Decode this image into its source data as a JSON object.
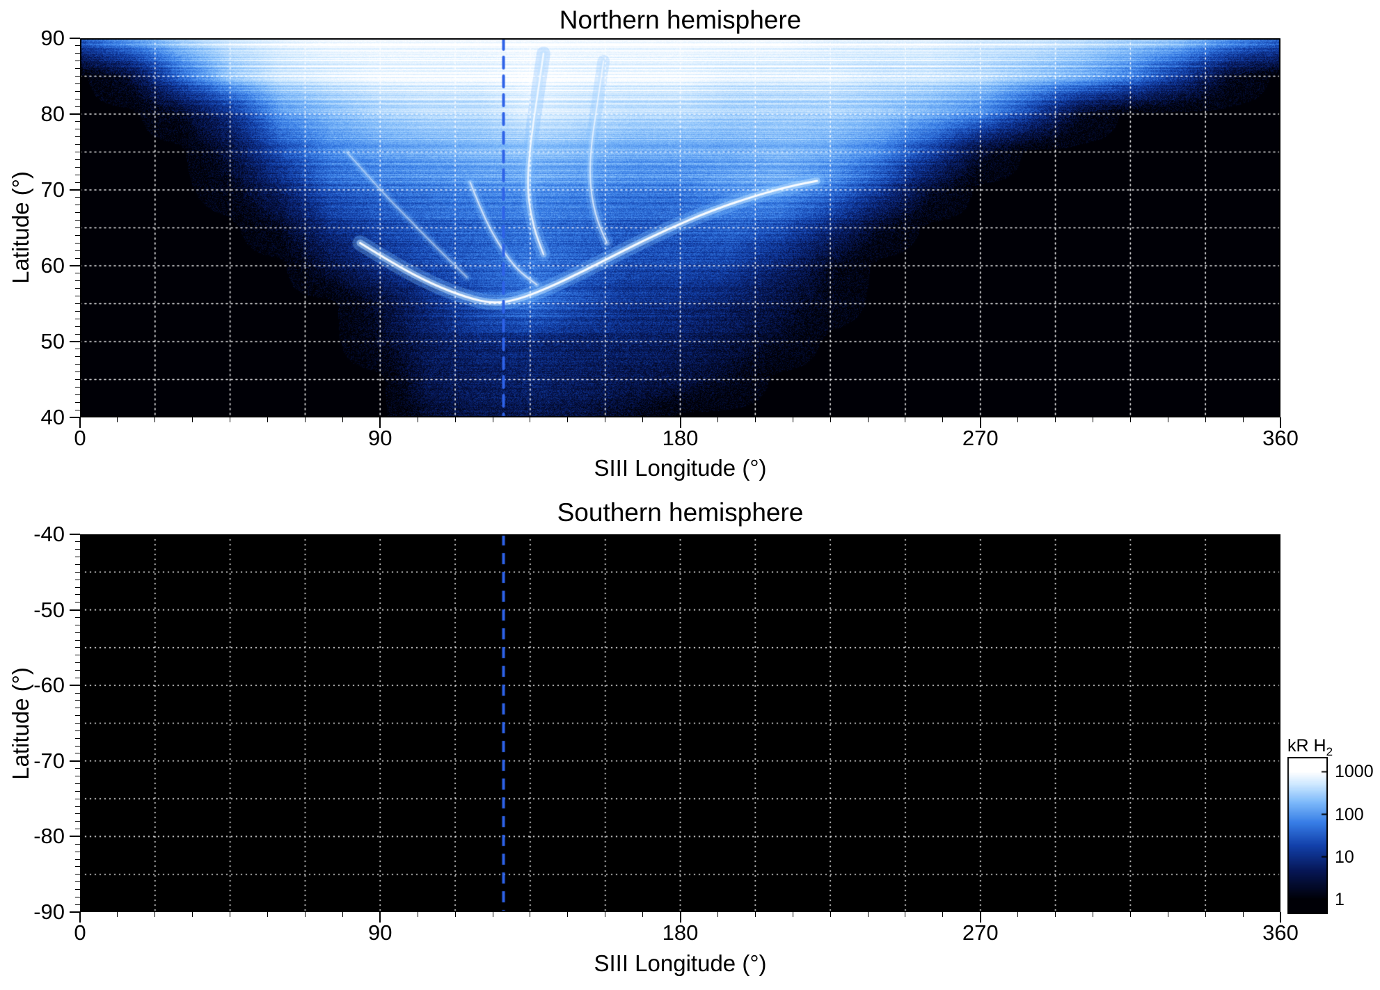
{
  "chart_data": [
    {
      "id": "northern",
      "type": "heatmap",
      "title": "Northern hemisphere",
      "xlabel": "SIII Longitude (°)",
      "ylabel": "Latitude (°)",
      "xlim": [
        0,
        360
      ],
      "ylim": [
        40,
        90
      ],
      "xticks": [
        0,
        90,
        180,
        270,
        360
      ],
      "yticks": [
        40,
        50,
        60,
        70,
        80,
        90
      ],
      "grid_x_step": 22.5,
      "grid_y_step": 5,
      "gridline_color": "#ffffff",
      "reference_line": {
        "x": 127,
        "color": "#2e62e8",
        "style": "dashed"
      },
      "grid": {
        "units": "log10(kR H2)",
        "lon": [
          0,
          15,
          30,
          45,
          60,
          75,
          90,
          105,
          120,
          135,
          150,
          165,
          180,
          195,
          210,
          225,
          240,
          255,
          270,
          285,
          300,
          315,
          330,
          345,
          360
        ],
        "lat": [
          90,
          85,
          80,
          75,
          70,
          65,
          60,
          55,
          50,
          45,
          40
        ],
        "log10_kr": [
          [
            1.6,
            2.2,
            2.6,
            2.8,
            2.9,
            3.0,
            3.0,
            3.0,
            3.0,
            3.0,
            3.0,
            3.0,
            3.0,
            3.0,
            3.0,
            2.9,
            2.9,
            2.9,
            2.8,
            2.8,
            2.7,
            2.6,
            2.5,
            2.1,
            1.7
          ],
          [
            0,
            0.4,
            1.6,
            2.4,
            2.7,
            2.8,
            2.9,
            2.9,
            2.9,
            3.0,
            2.9,
            2.9,
            2.9,
            2.8,
            2.8,
            2.8,
            2.7,
            2.7,
            2.6,
            2.4,
            2.2,
            1.8,
            1.1,
            0.3,
            0
          ],
          [
            0,
            0,
            0.3,
            1.0,
            2.0,
            2.3,
            2.5,
            2.6,
            2.6,
            2.8,
            2.7,
            2.6,
            2.6,
            2.5,
            2.5,
            2.5,
            2.4,
            2.2,
            1.9,
            1.2,
            0.3,
            0,
            0,
            0,
            0
          ],
          [
            0,
            0,
            0,
            0.5,
            1.4,
            1.9,
            2.1,
            2.2,
            2.3,
            2.4,
            2.3,
            2.2,
            2.2,
            2.2,
            2.3,
            2.2,
            1.9,
            1.3,
            0.4,
            0,
            0,
            0,
            0,
            0,
            0
          ],
          [
            0,
            0,
            0,
            0.2,
            0.8,
            1.5,
            1.7,
            1.8,
            1.9,
            2.0,
            1.9,
            1.8,
            1.8,
            2.0,
            2.1,
            1.8,
            1.2,
            0.4,
            0,
            0,
            0,
            0,
            0,
            0,
            0
          ],
          [
            0,
            0,
            0,
            0,
            0.3,
            1.0,
            1.3,
            1.5,
            1.6,
            1.7,
            1.6,
            1.5,
            1.5,
            1.6,
            1.4,
            0.9,
            0.3,
            0,
            0,
            0,
            0,
            0,
            0,
            0,
            0
          ],
          [
            0,
            0,
            0,
            0,
            0,
            0.5,
            1.0,
            1.3,
            1.5,
            1.7,
            1.5,
            1.3,
            1.3,
            1.2,
            0.8,
            0.3,
            0,
            0,
            0,
            0,
            0,
            0,
            0,
            0,
            0
          ],
          [
            0,
            0,
            0,
            0,
            0,
            0,
            0.4,
            1.0,
            1.5,
            1.8,
            1.4,
            1.1,
            1.0,
            0.8,
            0.5,
            0.2,
            0,
            0,
            0,
            0,
            0,
            0,
            0,
            0,
            0
          ],
          [
            0,
            0,
            0,
            0,
            0,
            0,
            0.3,
            0.7,
            0.9,
            0.9,
            0.8,
            0.8,
            0.7,
            0.5,
            0.3,
            0,
            0,
            0,
            0,
            0,
            0,
            0,
            0,
            0,
            0
          ],
          [
            0,
            0,
            0,
            0,
            0,
            0,
            0,
            0.6,
            0.7,
            0.8,
            0.7,
            0.6,
            0.5,
            0.3,
            0,
            0,
            0,
            0,
            0,
            0,
            0,
            0,
            0,
            0,
            0
          ],
          [
            0,
            0,
            0,
            0,
            0,
            0,
            0,
            0.4,
            0.6,
            0.6,
            0.5,
            0.3,
            0,
            0,
            0,
            0,
            0,
            0,
            0,
            0,
            0,
            0,
            0,
            0,
            0
          ]
        ]
      },
      "arcs": [
        {
          "name": "main-oval-arc",
          "points": [
            [
              84,
              63
            ],
            [
              95,
              60
            ],
            [
              106,
              57.5
            ],
            [
              116,
              55.8
            ],
            [
              124,
              55
            ],
            [
              131,
              55.5
            ],
            [
              140,
              57
            ],
            [
              151,
              59.3
            ],
            [
              163,
              62
            ],
            [
              176,
              64.8
            ],
            [
              190,
              67.4
            ],
            [
              203,
              69.3
            ],
            [
              213,
              70.5
            ],
            [
              221,
              71.2
            ]
          ],
          "core_width": 3,
          "glow_width": 10,
          "brightness": 1.0
        },
        {
          "name": "inner-arc",
          "points": [
            [
              117,
              71
            ],
            [
              121,
              66.5
            ],
            [
              126,
              62.5
            ],
            [
              131,
              59.5
            ],
            [
              137,
              57.5
            ]
          ],
          "core_width": 2,
          "glow_width": 7,
          "brightness": 0.7
        },
        {
          "name": "central-ray-1",
          "points": [
            [
              139,
              88
            ],
            [
              137,
              82
            ],
            [
              135,
              76
            ],
            [
              134,
              70
            ],
            [
              136,
              65
            ],
            [
              139,
              61.5
            ]
          ],
          "core_width": 2.5,
          "glow_width": 9,
          "brightness": 0.85
        },
        {
          "name": "central-ray-2",
          "points": [
            [
              157,
              87
            ],
            [
              155,
              81
            ],
            [
              153,
              75
            ],
            [
              153,
              70
            ],
            [
              155,
              66
            ],
            [
              158,
              63
            ]
          ],
          "core_width": 2,
          "glow_width": 8,
          "brightness": 0.7
        },
        {
          "name": "left-ray",
          "points": [
            [
              80,
              75
            ],
            [
              90,
              70
            ],
            [
              100,
              65.5
            ],
            [
              109,
              61.5
            ],
            [
              116,
              58.5
            ]
          ],
          "core_width": 1.5,
          "glow_width": 6,
          "brightness": 0.5
        }
      ]
    },
    {
      "id": "southern",
      "type": "heatmap",
      "title": "Southern hemisphere",
      "xlabel": "SIII Longitude (°)",
      "ylabel": "Latitude (°)",
      "xlim": [
        0,
        360
      ],
      "ylim": [
        -90,
        -40
      ],
      "xticks": [
        0,
        90,
        180,
        270,
        360
      ],
      "yticks": [
        -90,
        -80,
        -70,
        -60,
        -50,
        -40
      ],
      "grid_x_step": 22.5,
      "grid_y_step": 5,
      "gridline_color": "#ffffff",
      "reference_line": {
        "x": 127,
        "color": "#2e62e8",
        "style": "dashed"
      },
      "empty": true
    }
  ],
  "colorbar": {
    "label_main": "kR H",
    "label_sub": "2",
    "scale": "log",
    "range_kr": [
      1,
      1000
    ],
    "tick_values": [
      1000,
      100,
      10,
      1
    ],
    "tick_labels": [
      "1000",
      "100",
      "10",
      "1"
    ],
    "colormap_stops": [
      {
        "t": 0.0,
        "hex": "#000006"
      },
      {
        "t": 0.22,
        "hex": "#061655"
      },
      {
        "t": 0.42,
        "hex": "#1240aa"
      },
      {
        "t": 0.6,
        "hex": "#377de6"
      },
      {
        "t": 0.76,
        "hex": "#7db9fa"
      },
      {
        "t": 0.9,
        "hex": "#cde8ff"
      },
      {
        "t": 1.0,
        "hex": "#ffffff"
      }
    ]
  }
}
